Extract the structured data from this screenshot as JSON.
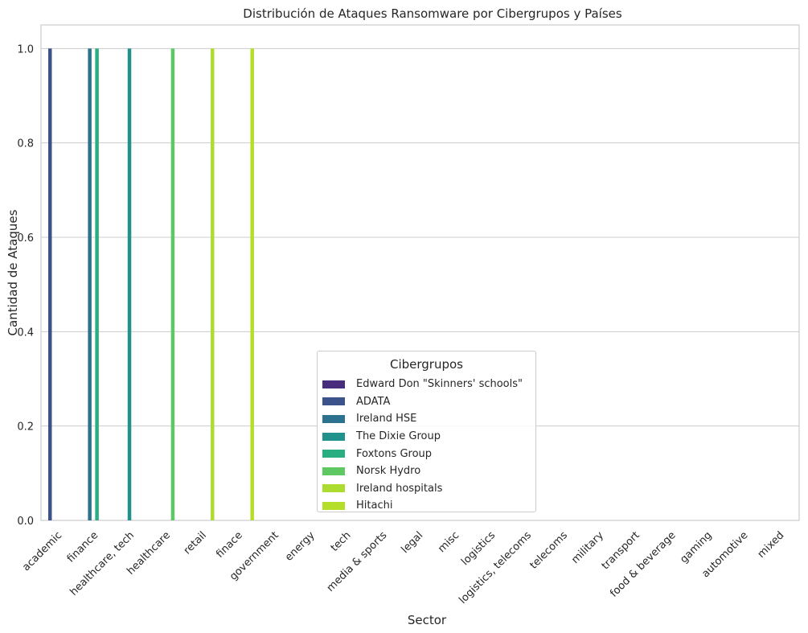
{
  "chart_data": {
    "type": "bar",
    "title": "Distribución de Ataques Ransomware por Cibergrupos y Países",
    "xlabel": "Sector",
    "ylabel": "Cantidad de Ataques",
    "ylim": [
      0,
      1.05
    ],
    "yticks": [
      "0.0",
      "0.2",
      "0.4",
      "0.6",
      "0.8",
      "1.0"
    ],
    "grid": "y",
    "categories": [
      "academic",
      "finance",
      "healthcare, tech",
      "healthcare",
      "retail",
      "finace",
      "government",
      "energy",
      "tech",
      "media & sports",
      "legal",
      "misc",
      "logistics",
      "logistics, telecoms",
      "telecoms",
      "military",
      "transport",
      "food & beverage",
      "gaming",
      "automotive",
      "mixed"
    ],
    "series": [
      {
        "name": "Edward Don \"Skinners' schools\"",
        "color": "#472d7b",
        "values": [
          0,
          0,
          0,
          0,
          0,
          0,
          0,
          0,
          0,
          0,
          0,
          0,
          0,
          0,
          0,
          0,
          0,
          0,
          0,
          0,
          0
        ]
      },
      {
        "name": "ADATA",
        "color": "#3b528b",
        "values": [
          1,
          0,
          0,
          0,
          0,
          0,
          0,
          0,
          0,
          0,
          0,
          0,
          0,
          0,
          0,
          0,
          0,
          0,
          0,
          0,
          0
        ]
      },
      {
        "name": "Ireland HSE",
        "color": "#2c728e",
        "values": [
          0,
          1,
          0,
          0,
          0,
          0,
          0,
          0,
          0,
          0,
          0,
          0,
          0,
          0,
          0,
          0,
          0,
          0,
          0,
          0,
          0
        ]
      },
      {
        "name": "The Dixie Group",
        "color": "#21918c",
        "values": [
          0,
          0,
          1,
          0,
          0,
          0,
          0,
          0,
          0,
          0,
          0,
          0,
          0,
          0,
          0,
          0,
          0,
          0,
          0,
          0,
          0
        ]
      },
      {
        "name": "Foxtons Group",
        "color": "#28ae80",
        "values": [
          0,
          1,
          0,
          0,
          0,
          0,
          0,
          0,
          0,
          0,
          0,
          0,
          0,
          0,
          0,
          0,
          0,
          0,
          0,
          0,
          0
        ]
      },
      {
        "name": "Norsk Hydro",
        "color": "#5ec962",
        "values": [
          0,
          0,
          0,
          1,
          0,
          0,
          0,
          0,
          0,
          0,
          0,
          0,
          0,
          0,
          0,
          0,
          0,
          0,
          0,
          0,
          0
        ]
      },
      {
        "name": "Ireland hospitals",
        "color": "#addc30",
        "values": [
          0,
          0,
          0,
          0,
          1,
          0,
          0,
          0,
          0,
          0,
          0,
          0,
          0,
          0,
          0,
          0,
          0,
          0,
          0,
          0,
          0
        ]
      },
      {
        "name": "Hitachi",
        "color": "#b5de2b",
        "values": [
          0,
          0,
          0,
          0,
          0,
          1,
          0,
          0,
          0,
          0,
          0,
          0,
          0,
          0,
          0,
          0,
          0,
          0,
          0,
          0,
          0
        ]
      }
    ],
    "legend": {
      "title": "Cibergrupos",
      "placement": "lower-center"
    }
  }
}
